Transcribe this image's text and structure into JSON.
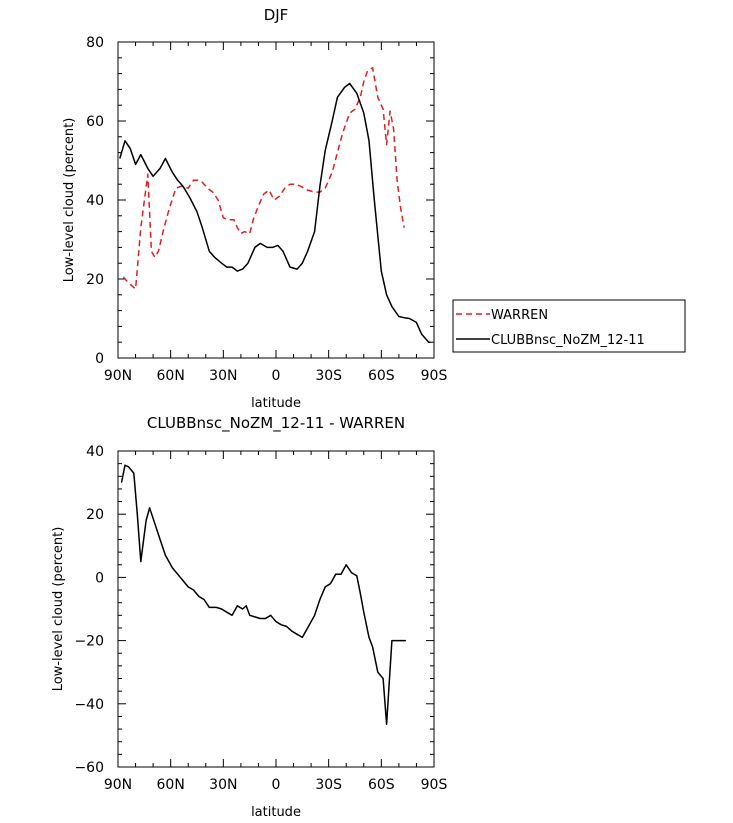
{
  "chart_data": [
    {
      "type": "line",
      "title": "DJF",
      "xlabel": "latitude",
      "ylabel": "Low-level cloud (percent)",
      "xlim": [
        90,
        -90
      ],
      "ylim": [
        0,
        80
      ],
      "xticks": [
        90,
        60,
        30,
        0,
        -30,
        -60,
        -90
      ],
      "xtick_labels": [
        "90N",
        "60N",
        "30N",
        "0",
        "30S",
        "60S",
        "90S"
      ],
      "yticks": [
        0,
        20,
        40,
        60,
        80
      ],
      "ytick_labels": [
        "0",
        "20",
        "40",
        "60",
        "80"
      ],
      "grid": false,
      "legend": "right-outside",
      "series": [
        {
          "name": "WARREN",
          "color": "#e01f1f",
          "dash": "dashed",
          "x": [
            87,
            84,
            80,
            77,
            73,
            71,
            69,
            67,
            64,
            61,
            57,
            54,
            50,
            47,
            44,
            42,
            39,
            36,
            33,
            30,
            27,
            24,
            22,
            20,
            18,
            15,
            13,
            10,
            7,
            4,
            1,
            -2,
            -5,
            -8,
            -11,
            -14,
            -18,
            -22,
            -25,
            -28,
            -32,
            -35,
            -38,
            -42,
            -45,
            -48,
            -50,
            -52,
            -55,
            -58,
            -61,
            -63,
            -65,
            -67,
            -69,
            -71,
            -73
          ],
          "values": [
            20.5,
            19,
            17.5,
            33,
            46.5,
            27,
            25.5,
            27,
            32.5,
            37.5,
            43,
            43.5,
            43,
            45,
            45,
            44.5,
            43,
            42,
            40,
            35.5,
            35,
            35,
            33,
            31.5,
            32,
            31.5,
            35,
            38.5,
            41.5,
            42.5,
            40,
            41,
            43,
            44,
            44,
            43.5,
            42.5,
            42,
            42,
            43,
            47,
            52,
            57,
            62,
            63,
            66,
            70,
            72.5,
            73.5,
            66,
            63,
            54,
            62.5,
            58,
            45,
            38,
            33
          ]
        },
        {
          "name": "CLUBBnsc_NoZM_12-11",
          "color": "#000000",
          "dash": "solid",
          "x": [
            89,
            86,
            83,
            80,
            77,
            73,
            70,
            66,
            63,
            59,
            56,
            53,
            49,
            45,
            42,
            38,
            35,
            31,
            28,
            25,
            22,
            19,
            16,
            12,
            9,
            5,
            2,
            -1,
            -4,
            -8,
            -12,
            -15,
            -18,
            -22,
            -25,
            -28,
            -32,
            -35,
            -39,
            -42,
            -46,
            -50,
            -53,
            -56,
            -60,
            -63,
            -66,
            -70,
            -73,
            -76,
            -80,
            -83,
            -87,
            -88
          ],
          "values": [
            50.5,
            55,
            53,
            49,
            51.5,
            48,
            46,
            48,
            50.5,
            47,
            45,
            43.5,
            40.5,
            37,
            33,
            27,
            25.5,
            24,
            23,
            23,
            22,
            22.5,
            24,
            28,
            29,
            28,
            28,
            28.5,
            27,
            23,
            22.5,
            24,
            27,
            32,
            43.5,
            52.5,
            60,
            66,
            68.5,
            69.5,
            67,
            62,
            55,
            40,
            22,
            16,
            13,
            10.5,
            10.2,
            10,
            9,
            6,
            4,
            4
          ]
        }
      ]
    },
    {
      "type": "line",
      "title": "CLUBBnsc_NoZM_12-11 - WARREN",
      "xlabel": "latitude",
      "ylabel": "Low-level cloud (percent)",
      "xlim": [
        90,
        -90
      ],
      "ylim": [
        -60,
        40
      ],
      "xticks": [
        90,
        60,
        30,
        0,
        -30,
        -60,
        -90
      ],
      "xtick_labels": [
        "90N",
        "60N",
        "30N",
        "0",
        "30S",
        "60S",
        "90S"
      ],
      "yticks": [
        -60,
        -40,
        -20,
        0,
        20,
        40
      ],
      "ytick_labels": [
        "−60",
        "−40",
        "−20",
        "0",
        "20",
        "40"
      ],
      "grid": false,
      "series": [
        {
          "color": "#000000",
          "dash": "solid",
          "x": [
            88,
            86,
            84,
            81,
            79,
            77,
            74,
            72,
            69,
            66,
            63,
            59,
            56,
            53,
            50,
            47,
            44,
            41,
            38,
            34,
            31,
            28,
            25,
            22,
            19,
            17,
            15,
            12,
            9,
            6,
            3,
            0,
            -3,
            -6,
            -9,
            -12,
            -15,
            -18,
            -22,
            -25,
            -28,
            -31,
            -34,
            -37,
            -40,
            -43,
            -46,
            -48,
            -50,
            -53,
            -55,
            -58,
            -61,
            -63,
            -66,
            -69,
            -72,
            -74
          ],
          "values": [
            30,
            35.5,
            35,
            33,
            20,
            5,
            18,
            22,
            17,
            12,
            7,
            3,
            1,
            -1,
            -3,
            -4,
            -6,
            -7,
            -9.5,
            -9.5,
            -10,
            -11,
            -12,
            -9,
            -10,
            -9,
            -12,
            -12.5,
            -13,
            -13,
            -12,
            -14,
            -15,
            -15.5,
            -17,
            -18,
            -19,
            -16,
            -12,
            -7,
            -3,
            -2,
            1,
            1,
            4,
            1.5,
            0.5,
            -5,
            -11,
            -19,
            -22,
            -30,
            -32,
            -46.5,
            -20,
            -20,
            -20,
            -20
          ]
        }
      ]
    }
  ]
}
